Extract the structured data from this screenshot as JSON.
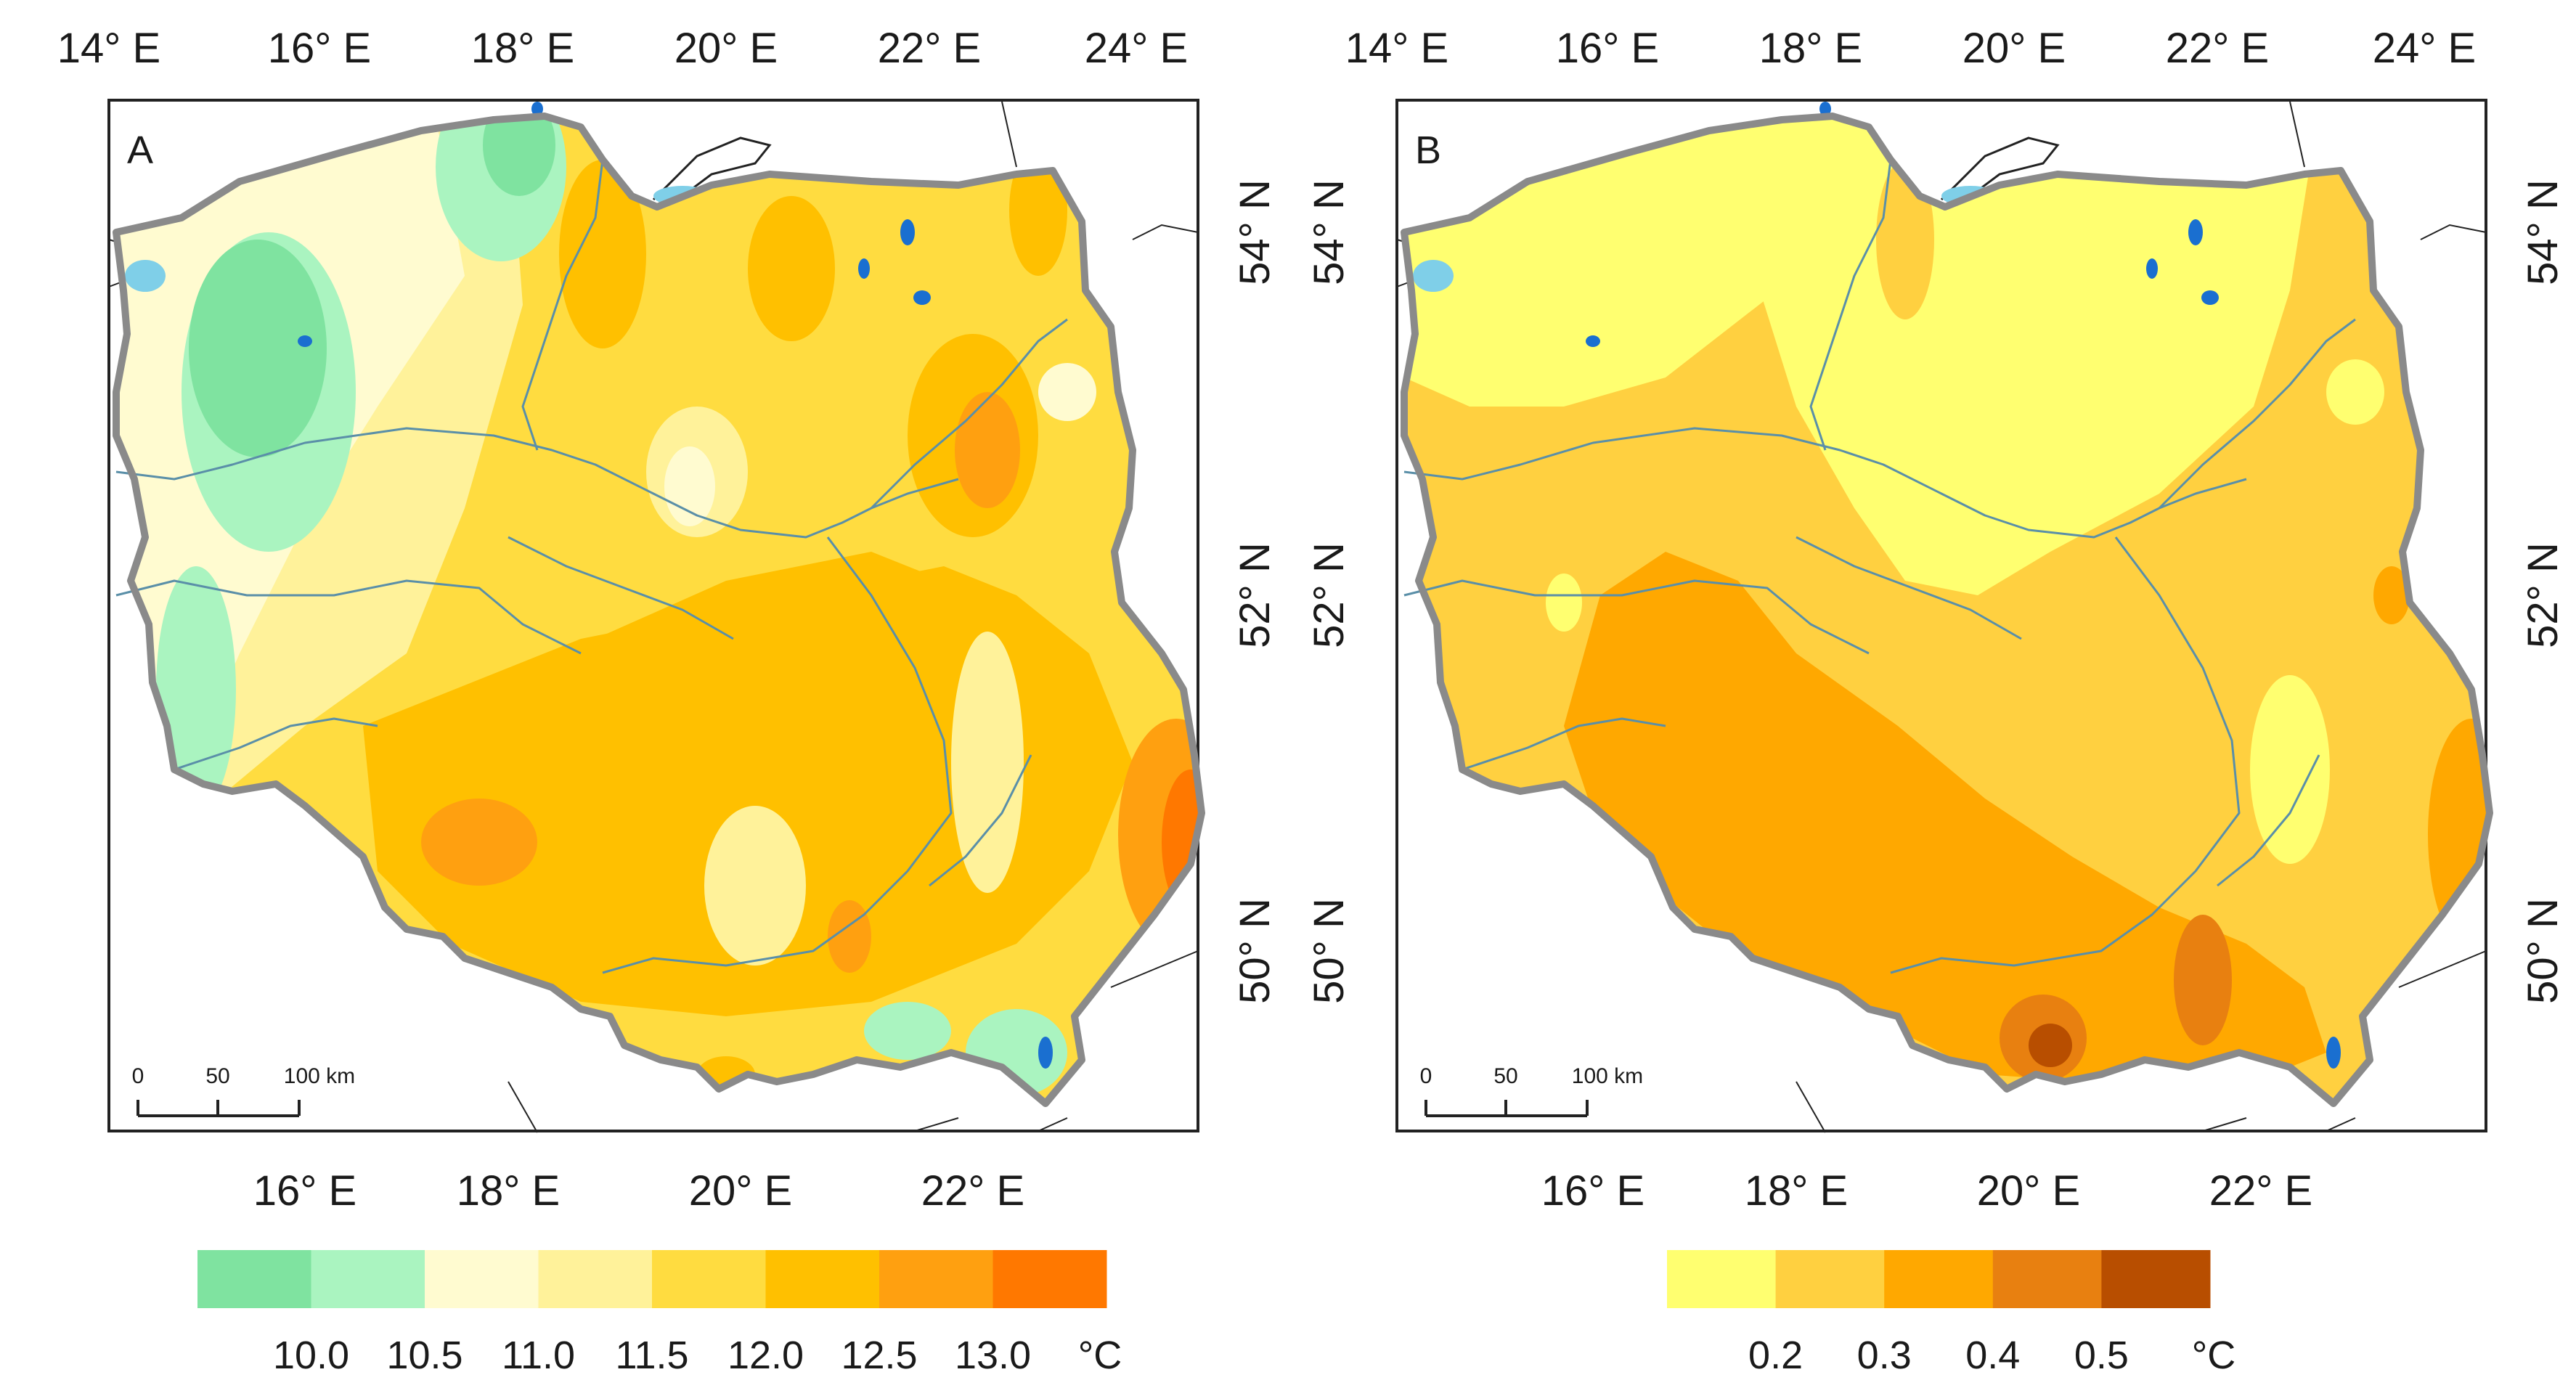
{
  "panels": [
    {
      "id": "A",
      "letter": "A",
      "top_ticks": [
        "14° E",
        "16° E",
        "18° E",
        "20° E",
        "22° E",
        "24° E"
      ],
      "bottom_ticks": [
        "16° E",
        "18° E",
        "20° E",
        "22° E"
      ],
      "right_lat_ticks": [
        "54° N",
        "52° N",
        "50° N"
      ],
      "scale_bar": {
        "labels": [
          "0",
          "50",
          "100 km"
        ]
      },
      "legend": {
        "classes": [
          "#7fe3a0",
          "#aaf4c0",
          "#fffbd0",
          "#fff29a",
          "#ffdc40",
          "#ffc000",
          "#ffa010",
          "#ff7800"
        ],
        "breaks": [
          "10.0",
          "10.5",
          "11.0",
          "11.5",
          "12.0",
          "12.5",
          "13.0"
        ],
        "unit": "°C"
      }
    },
    {
      "id": "B",
      "letter": "B",
      "top_ticks": [
        "14° E",
        "16° E",
        "18° E",
        "20° E",
        "22° E",
        "24° E"
      ],
      "bottom_ticks": [
        "16° E",
        "18° E",
        "20° E",
        "22° E"
      ],
      "left_lat_ticks": [
        "54° N",
        "52° N",
        "50° N"
      ],
      "right_lat_ticks": [
        "54° N",
        "52° N",
        "50° N"
      ],
      "scale_bar": {
        "labels": [
          "0",
          "50",
          "100 km"
        ]
      },
      "legend": {
        "classes": [
          "#ffff70",
          "#ffd040",
          "#ffa800",
          "#e88010",
          "#b84e00"
        ],
        "breaks": [
          "0.2",
          "0.3",
          "0.4",
          "0.5"
        ],
        "unit": "°C"
      }
    }
  ],
  "colors": {
    "border": "#8a8a8a",
    "river": "#5a8fa8",
    "lake": "#1a6fd0",
    "sea": "#ffffff"
  }
}
